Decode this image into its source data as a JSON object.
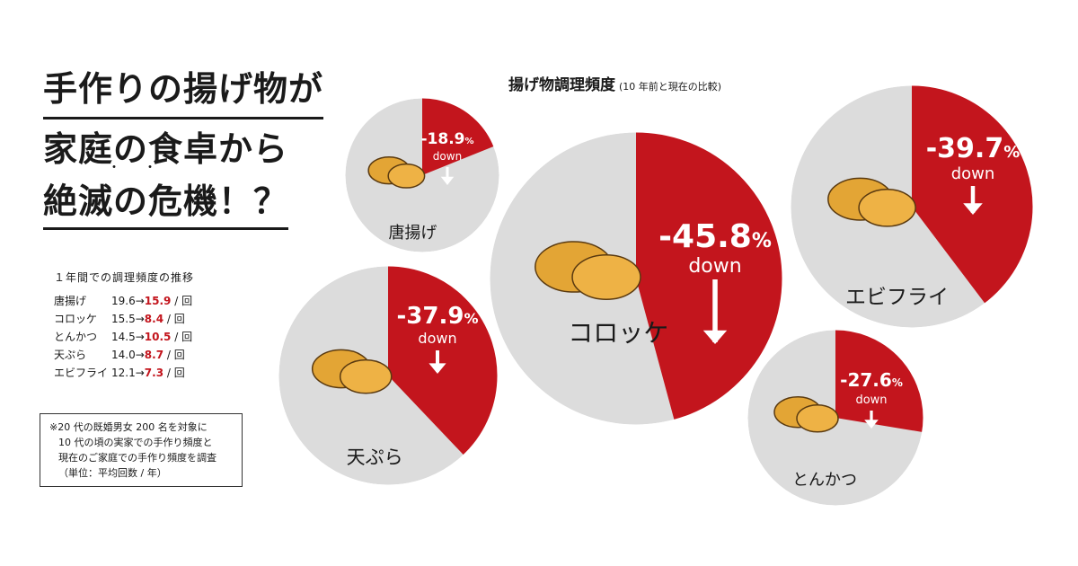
{
  "headline": {
    "line1": "手作りの揚げ物が",
    "line2": "家庭の食卓から",
    "line3": "絶滅の危機！？",
    "emphasis_dots": "・・"
  },
  "chart_title": "揚げ物調理頻度",
  "chart_subtitle": "(10 年前と現在の比較)",
  "stats_table": {
    "title": "１年間での調理頻度の推移",
    "unit": "/ 回",
    "rows": [
      {
        "name": "唐揚げ",
        "before": "19.6",
        "arrow": "→",
        "now": "15.9"
      },
      {
        "name": "コロッケ",
        "before": "15.5",
        "arrow": "→",
        "now": "8.4"
      },
      {
        "name": "とんかつ",
        "before": "14.5",
        "arrow": "→",
        "now": "10.5"
      },
      {
        "name": "天ぷら",
        "before": "14.0",
        "arrow": "→",
        "now": "8.7"
      },
      {
        "name": "エビフライ",
        "before": "12.1",
        "arrow": "→",
        "now": "7.3"
      }
    ]
  },
  "note": [
    "※20 代の既婚男女 200 名を対象に",
    "10 代の頃の実家での手作り頻度と",
    "現在のご家庭での手作り頻度を調査",
    "（単位：平均回数 / 年）"
  ],
  "colors": {
    "decline": "#c3151d",
    "remaining": "#dcdcdc",
    "border": "#ffffff",
    "text": "#1a1a1a"
  },
  "chart_data": {
    "type": "pie",
    "title": "揚げ物調理頻度",
    "series": [
      {
        "name": "唐揚げ",
        "before": 19.6,
        "now": 15.9,
        "change_label": "-18.9",
        "pct_sign": "%",
        "down_label": "down",
        "decline_percent": 18.9
      },
      {
        "name": "コロッケ",
        "before": 15.5,
        "now": 8.4,
        "change_label": "-45.8",
        "pct_sign": "%",
        "down_label": "down",
        "decline_percent": 45.8
      },
      {
        "name": "エビフライ",
        "before": 12.1,
        "now": 7.3,
        "change_label": "-39.7",
        "pct_sign": "%",
        "down_label": "down",
        "decline_percent": 39.7
      },
      {
        "name": "天ぷら",
        "before": 14.0,
        "now": 8.7,
        "change_label": "-37.9",
        "pct_sign": "%",
        "down_label": "down",
        "decline_percent": 37.9
      },
      {
        "name": "とんかつ",
        "before": 14.5,
        "now": 10.5,
        "change_label": "-27.6",
        "pct_sign": "%",
        "down_label": "down",
        "decline_percent": 27.6
      }
    ]
  }
}
